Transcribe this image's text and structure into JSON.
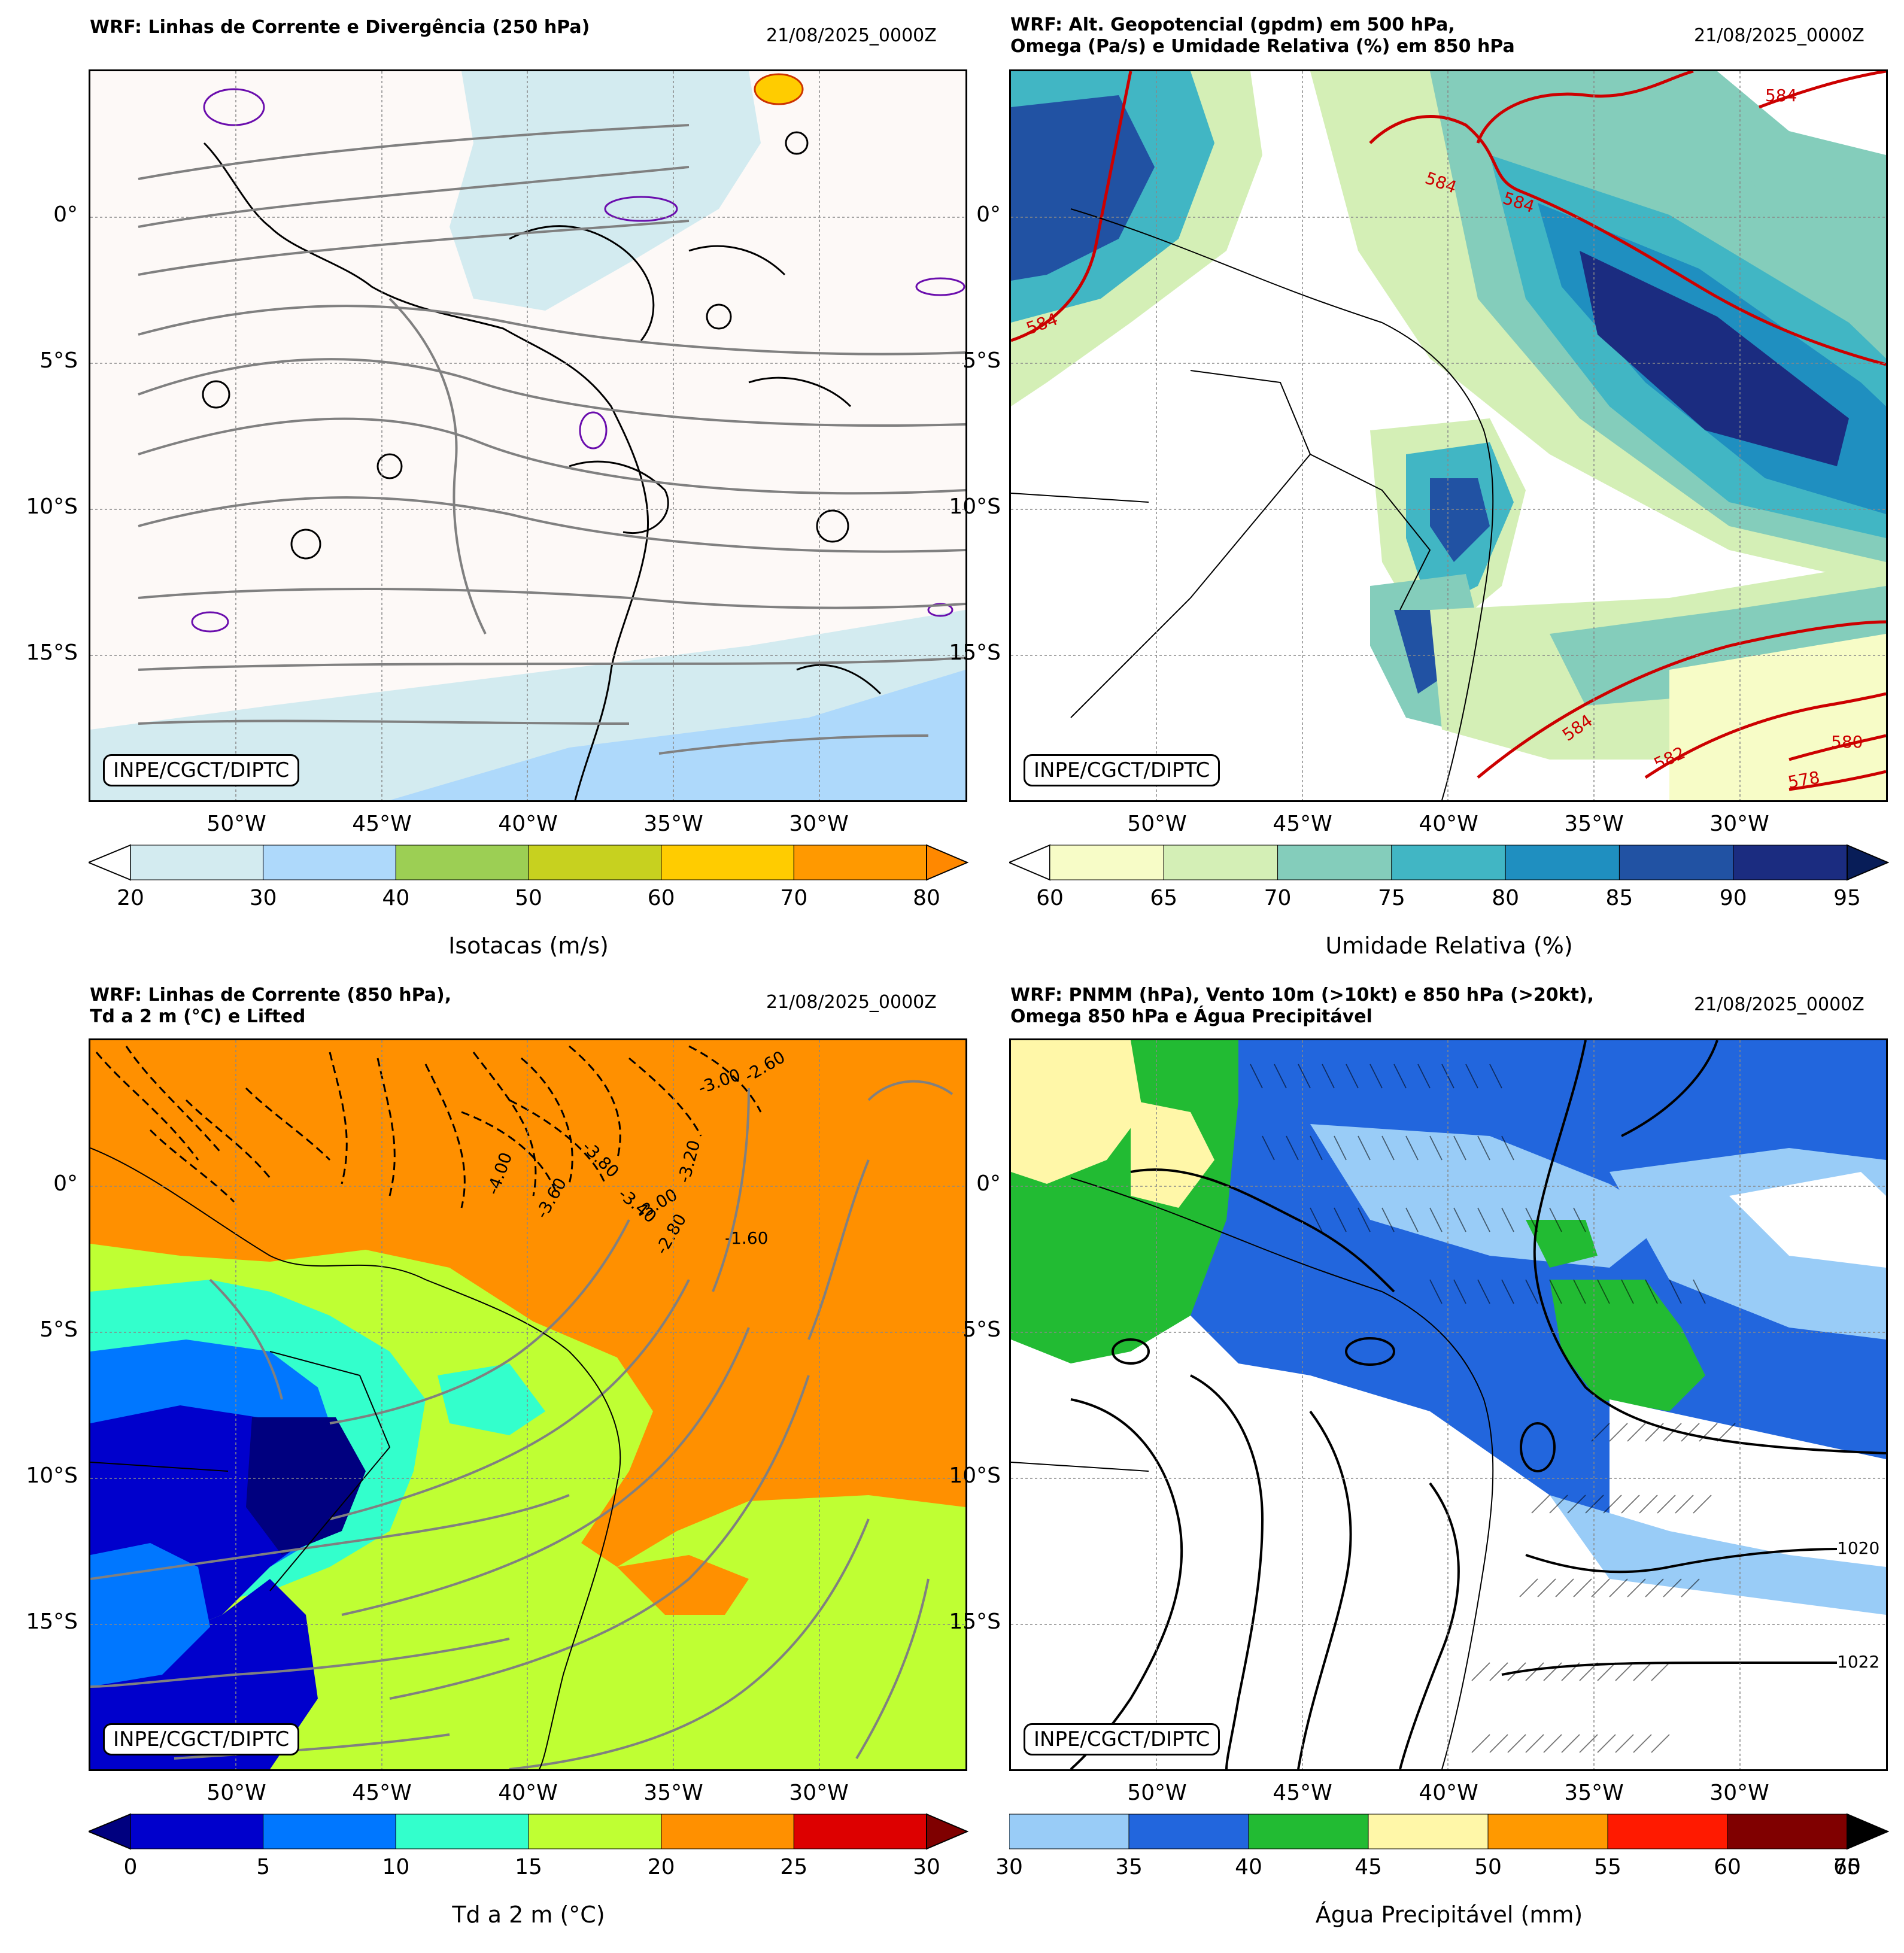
{
  "panels": [
    {
      "title_line1": "WRF: Linhas de Corrente e Divergência (250 hPa)",
      "title_line2": "",
      "datetime": "21/08/2025_0000Z",
      "credit": "INPE/CGCT/DIPTC",
      "colorbar_label": "Isotacas (m/s)",
      "colorbar_ticks": [
        "20",
        "30",
        "40",
        "50",
        "60",
        "70",
        "80"
      ],
      "colorbar_colors": [
        "#d3ebf0",
        "#aed9fb",
        "#9ccf54",
        "#c7d11f",
        "#ffcc00",
        "#ff9900"
      ],
      "colorbar_extend_low": "#ffffff",
      "colorbar_extend_high": "#ff8800"
    },
    {
      "title_line1": "WRF: Alt. Geopotencial (gpdm) em 500 hPa,",
      "title_line2": "Omega (Pa/s) e Umidade Relativa (%) em 850 hPa",
      "datetime": "21/08/2025_0000Z",
      "credit": "INPE/CGCT/DIPTC",
      "colorbar_label": "Umidade Relativa (%)",
      "colorbar_ticks": [
        "60",
        "65",
        "70",
        "75",
        "80",
        "85",
        "90",
        "95"
      ],
      "colorbar_colors": [
        "#f7fcc7",
        "#d4efb6",
        "#84cdbb",
        "#41b6c4",
        "#1f8fc0",
        "#2152a3",
        "#1b2c80"
      ],
      "colorbar_extend_low": "#ffffff",
      "colorbar_extend_high": "#081d58",
      "contour_labels": [
        "584",
        "584",
        "584",
        "584",
        "584",
        "582",
        "580",
        "578"
      ]
    },
    {
      "title_line1": "WRF: Linhas de Corrente (850 hPa),",
      "title_line2": "Td a 2 m (°C) e Lifted",
      "datetime": "21/08/2025_0000Z",
      "credit": "INPE/CGCT/DIPTC",
      "colorbar_label": "Td a 2 m (°C)",
      "colorbar_ticks": [
        "0",
        "5",
        "10",
        "15",
        "20",
        "25",
        "30"
      ],
      "colorbar_colors": [
        "#0000cc",
        "#0077ff",
        "#33ffcc",
        "#bfff33",
        "#ff9000",
        "#dd0000"
      ],
      "colorbar_extend_low": "#00007f",
      "colorbar_extend_high": "#7f0000",
      "contour_labels": [
        "-1.60",
        "-3.80",
        "-3.40",
        "-3.00",
        "-3.60",
        "-2.80",
        "-3.20",
        "-4.00",
        "-3.00",
        "-2.60"
      ]
    },
    {
      "title_line1": "WRF: PNMM (hPa), Vento 10m (>10kt) e 850 hPa (>20kt),",
      "title_line2": "Omega 850 hPa e Água Precipitável",
      "datetime": "21/08/2025_0000Z",
      "credit": "INPE/CGCT/DIPTC",
      "colorbar_label": "Água Precipitável (mm)",
      "colorbar_ticks": [
        "30",
        "35",
        "40",
        "45",
        "50",
        "55",
        "60",
        "65"
      ],
      "colorbar_tick_overlap": "70",
      "colorbar_colors": [
        "#99ccf7",
        "#2266dd",
        "#22bb33",
        "#fff7a8",
        "#ff9900",
        "#ff1a00",
        "#800000"
      ],
      "colorbar_extend_high": "#000000",
      "contour_labels": [
        "1020",
        "1022"
      ]
    }
  ],
  "axes": {
    "lat_labels": [
      "0°",
      "5°S",
      "10°S",
      "15°S"
    ],
    "lon_labels": [
      "50°W",
      "45°W",
      "40°W",
      "35°W",
      "30°W"
    ]
  }
}
